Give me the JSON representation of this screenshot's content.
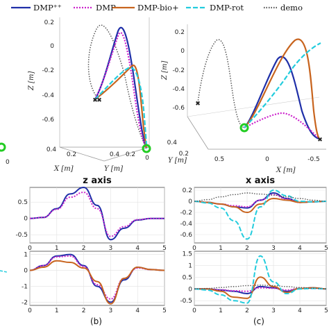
{
  "legend": [
    {
      "name": "DMP⁺⁺",
      "color": "#1f2fa8",
      "dash": ""
    },
    {
      "name": "DMP",
      "color": "#cc22cc",
      "dash": "2,2"
    },
    {
      "name": "DMP-bio+",
      "color": "#c8641e",
      "dash": ""
    },
    {
      "name": "DMP-rot",
      "color": "#22ccdd",
      "dash": "7,3"
    },
    {
      "name": "demo",
      "color": "#555555",
      "dash": "1.5,2"
    }
  ],
  "panel_labels": [
    "(b)",
    "(c)"
  ],
  "chart_data": [
    {
      "type": "line",
      "subtype": "3d",
      "zlabel": "Z [m]",
      "xlabel": "X [m]",
      "ylabel": "Y [m]",
      "z_ticks": [
        "0.2",
        "0",
        "-0.2",
        "-0.4",
        "-0.6"
      ],
      "x_ticks": [
        "0.4",
        "0.2"
      ],
      "y_ticks": [
        "0.4",
        "0.2",
        "0"
      ],
      "partial_ticks": [
        "0"
      ]
    },
    {
      "type": "line",
      "subtype": "3d",
      "zlabel": "Z [m]",
      "xlabel": "X [m]",
      "ylabel": "Y [m]",
      "z_ticks": [
        "0.2",
        "0",
        "-0.2",
        "-0.4",
        "-0.6"
      ],
      "x_ticks": [
        "0.5",
        "0",
        "-0.5"
      ],
      "y_ticks": [
        "0.4",
        "0.2"
      ]
    },
    {
      "type": "line",
      "title": "z axis",
      "xlim": [
        0,
        5
      ],
      "ylim": [
        -0.75,
        0.95
      ],
      "x_ticks": [
        "0",
        "1",
        "2",
        "3",
        "4",
        "5"
      ],
      "y_ticks": [
        "0.5",
        "0",
        "-0.5"
      ],
      "x": [
        0,
        0.5,
        1,
        1.5,
        2,
        2.5,
        3,
        3.5,
        4,
        4.5,
        5
      ],
      "series": [
        {
          "name": "DMP⁺⁺",
          "values": [
            0,
            0.03,
            0.3,
            0.75,
            0.95,
            0.4,
            -0.65,
            -0.3,
            -0.05,
            0,
            0
          ]
        },
        {
          "name": "DMP",
          "values": [
            0,
            0.03,
            0.28,
            0.65,
            0.8,
            0.3,
            -0.55,
            -0.25,
            -0.04,
            0,
            0
          ]
        }
      ]
    },
    {
      "type": "line",
      "xlim": [
        0,
        5
      ],
      "ylim": [
        -2.2,
        1.2
      ],
      "x_ticks": [
        "0",
        "1",
        "2",
        "3",
        "4",
        "5"
      ],
      "y_ticks": [
        "1",
        "0",
        "-1",
        "-2"
      ],
      "x": [
        0,
        0.5,
        1,
        1.5,
        2,
        2.5,
        3,
        3.5,
        4,
        4.5,
        5
      ],
      "series": [
        {
          "name": "DMP⁺⁺",
          "values": [
            0,
            0.3,
            0.9,
            1.0,
            0.3,
            -1.0,
            -2.0,
            -0.6,
            0.2,
            0.05,
            0
          ]
        },
        {
          "name": "DMP",
          "values": [
            0,
            0.3,
            0.85,
            0.9,
            0.25,
            -0.9,
            -1.8,
            -0.5,
            0.15,
            0.05,
            0
          ]
        },
        {
          "name": "DMP-bio+",
          "values": [
            0,
            0.2,
            0.6,
            0.5,
            0.15,
            -0.7,
            -2.1,
            -0.5,
            0.2,
            0.05,
            0
          ]
        }
      ]
    },
    {
      "type": "line",
      "title": "x axis",
      "xlim": [
        0,
        5
      ],
      "ylim": [
        -0.75,
        0.25
      ],
      "x_ticks": [
        "0",
        "1",
        "2",
        "3",
        "4",
        "5"
      ],
      "y_ticks": [
        "0.2",
        "0",
        "-0.2",
        "-0.4",
        "-0.6"
      ],
      "x": [
        0,
        0.5,
        1,
        1.5,
        2,
        2.5,
        3,
        3.5,
        4,
        4.5,
        5
      ],
      "series": [
        {
          "name": "DMP⁺⁺",
          "values": [
            0,
            -0.02,
            -0.05,
            -0.1,
            -0.12,
            0.02,
            0.15,
            0.05,
            -0.02,
            -0.01,
            0
          ]
        },
        {
          "name": "DMP",
          "values": [
            0,
            -0.02,
            -0.05,
            -0.08,
            -0.1,
            0.02,
            0.12,
            0.04,
            -0.02,
            -0.01,
            0
          ]
        },
        {
          "name": "DMP-bio+",
          "values": [
            0,
            -0.02,
            -0.05,
            -0.1,
            -0.2,
            -0.05,
            0.05,
            0.02,
            -0.02,
            -0.01,
            0
          ]
        },
        {
          "name": "DMP-rot",
          "values": [
            0,
            -0.03,
            -0.12,
            -0.35,
            -0.68,
            -0.1,
            0.2,
            0.1,
            0.0,
            -0.01,
            0
          ]
        },
        {
          "name": "demo",
          "values": [
            0,
            0.03,
            0.08,
            0.12,
            0.15,
            0.13,
            0.11,
            0.08,
            0.05,
            0.02,
            0
          ]
        }
      ]
    },
    {
      "type": "line",
      "xlim": [
        0,
        5
      ],
      "ylim": [
        -0.7,
        1.6
      ],
      "x_ticks": [
        "0",
        "1",
        "2",
        "3",
        "4",
        "5"
      ],
      "y_ticks": [
        "1.5",
        "1",
        "0.5",
        "0",
        "-0.5"
      ],
      "x": [
        0,
        0.5,
        1,
        1.5,
        2,
        2.5,
        3,
        3.5,
        4,
        4.5,
        5
      ],
      "series": [
        {
          "name": "DMP⁺⁺",
          "values": [
            0,
            0,
            -0.05,
            -0.1,
            -0.2,
            0.1,
            0.05,
            -0.1,
            0.02,
            0.05,
            0
          ]
        },
        {
          "name": "DMP",
          "values": [
            0,
            0,
            -0.04,
            -0.08,
            -0.1,
            0.05,
            0.03,
            -0.05,
            0.02,
            0.03,
            0
          ]
        },
        {
          "name": "DMP-bio+",
          "values": [
            0,
            0,
            -0.1,
            -0.35,
            -0.4,
            0.5,
            0.1,
            -0.15,
            0.02,
            0.05,
            0
          ]
        },
        {
          "name": "DMP-rot",
          "values": [
            0,
            -0.05,
            -0.25,
            -0.5,
            -0.6,
            1.4,
            0.3,
            -0.2,
            0.0,
            0.02,
            0
          ]
        },
        {
          "name": "demo",
          "values": [
            0,
            0.02,
            0.06,
            0.1,
            0.14,
            0.16,
            0.14,
            0.1,
            0.06,
            0.03,
            0
          ]
        }
      ]
    }
  ]
}
